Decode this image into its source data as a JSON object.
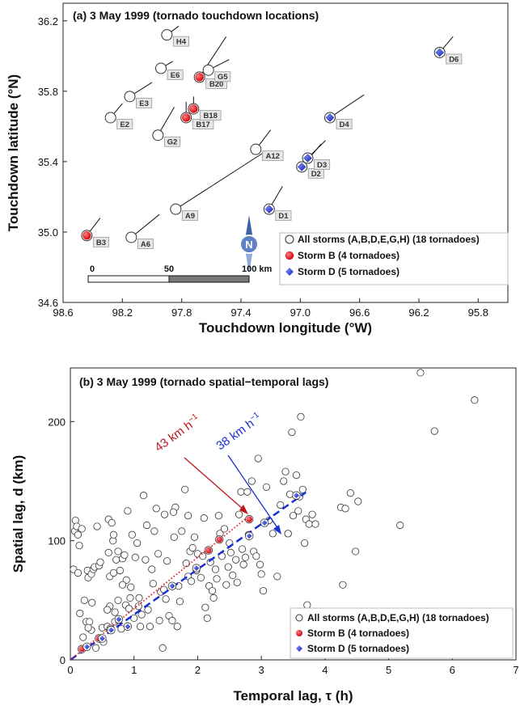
{
  "colors": {
    "storm_b": "#e8141c",
    "storm_d": "#1a2fd6",
    "all": "#ffffff",
    "speed_b": "#c0141c",
    "speed_d": "#1a2fd6",
    "compass": "#3d63a6"
  },
  "chart_data": [
    {
      "type": "scatter",
      "title": "(a) 3 May 1999 (tornado touchdown locations)",
      "xlabel": "Touchdown longitude (°W)",
      "ylabel": "Touchdown latitude (°N)",
      "xlim": [
        98.6,
        95.6
      ],
      "ylim": [
        34.6,
        36.3
      ],
      "x_reversed": true,
      "xticks": [
        98.6,
        98.2,
        97.8,
        97.4,
        97.0,
        96.6,
        96.2,
        95.8
      ],
      "xtick_labels": [
        "98.6",
        "98.2",
        "97.8",
        "97.4",
        "97.0",
        "96.6",
        "96.2",
        "95.8"
      ],
      "yticks": [
        34.6,
        35.0,
        35.4,
        35.8,
        36.2
      ],
      "ytick_labels": [
        "34.6",
        "35.0",
        "35.4",
        "35.8",
        "36.2"
      ],
      "grid": false,
      "legend_position": "bottom-right",
      "legend": [
        "All storms (A,B,D,E,G,H) (18 tornadoes)",
        "Storm B (4 tornadoes)",
        "Storm D (5 tornadoes)"
      ],
      "compass_label": "N",
      "scale_bar": {
        "labels": [
          "0",
          "50",
          "100 km"
        ]
      },
      "points": [
        {
          "label": "A6",
          "lon": 98.14,
          "lat": 34.97,
          "group": "all",
          "track_end": [
            97.95,
            35.1
          ]
        },
        {
          "label": "A9",
          "lon": 97.84,
          "lat": 35.13,
          "group": "all",
          "track_end": [
            97.25,
            35.45
          ]
        },
        {
          "label": "A12",
          "lon": 97.3,
          "lat": 35.47,
          "group": "all",
          "track_end": [
            97.2,
            35.58
          ]
        },
        {
          "label": "B3",
          "lon": 98.44,
          "lat": 34.98,
          "group": "B",
          "track_end": [
            98.35,
            35.08
          ]
        },
        {
          "label": "B17",
          "lon": 97.77,
          "lat": 35.65,
          "group": "B",
          "track_end": [
            97.77,
            35.74
          ]
        },
        {
          "label": "B18",
          "lon": 97.72,
          "lat": 35.7,
          "group": "B",
          "track_end": [
            97.72,
            35.77
          ]
        },
        {
          "label": "B20",
          "lon": 97.68,
          "lat": 35.88,
          "group": "B",
          "track_end": [
            97.5,
            36.11
          ]
        },
        {
          "label": "D1",
          "lon": 97.21,
          "lat": 35.13,
          "group": "D",
          "track_end": [
            97.12,
            35.26
          ]
        },
        {
          "label": "D2",
          "lon": 96.99,
          "lat": 35.37,
          "group": "D",
          "track_end": [
            96.86,
            35.5
          ]
        },
        {
          "label": "D3",
          "lon": 96.95,
          "lat": 35.42,
          "group": "D",
          "track_end": [
            96.83,
            35.52
          ]
        },
        {
          "label": "D4",
          "lon": 96.8,
          "lat": 35.65,
          "group": "D",
          "track_end": [
            96.57,
            35.78
          ]
        },
        {
          "label": "D6",
          "lon": 96.06,
          "lat": 36.02,
          "group": "D",
          "track_end": [
            95.97,
            36.11
          ]
        },
        {
          "label": "E2",
          "lon": 98.28,
          "lat": 35.65,
          "group": "all",
          "track_end": [
            98.2,
            35.73
          ]
        },
        {
          "label": "E3",
          "lon": 98.15,
          "lat": 35.77,
          "group": "all",
          "track_end": [
            98.0,
            35.85
          ]
        },
        {
          "label": "E6",
          "lon": 97.94,
          "lat": 35.93,
          "group": "all",
          "track_end": [
            97.86,
            35.97
          ]
        },
        {
          "label": "G2",
          "lon": 97.96,
          "lat": 35.55,
          "group": "all",
          "track_end": [
            97.85,
            35.71
          ]
        },
        {
          "label": "G5",
          "lon": 97.62,
          "lat": 35.92,
          "group": "all",
          "track_end": [
            97.48,
            35.98
          ]
        },
        {
          "label": "H4",
          "lon": 97.9,
          "lat": 36.12,
          "group": "all",
          "track_end": [
            97.82,
            36.17
          ]
        }
      ]
    },
    {
      "type": "scatter",
      "title": "(b) 3 May 1999 (tornado spatial−temporal lags)",
      "xlabel": "Temporal lag, τ (h)",
      "ylabel": "Spatial lag, d (km)",
      "xlim": [
        0,
        7
      ],
      "ylim": [
        0,
        245
      ],
      "xticks": [
        0,
        1,
        2,
        3,
        4,
        5,
        6,
        7
      ],
      "xtick_labels": [
        "0",
        "1",
        "2",
        "3",
        "4",
        "5",
        "6",
        "7"
      ],
      "yticks": [
        0,
        100,
        200
      ],
      "ytick_labels": [
        "0",
        "100",
        "200"
      ],
      "grid": false,
      "legend_position": "bottom-right",
      "legend": [
        "All storms (A,B,D,E,G,H) (18 tornadoes)",
        "Storm B (4 tornadoes)",
        "Storm D (5 tornadoes)"
      ],
      "fit_lines": [
        {
          "name": "Storm B",
          "slope": 43,
          "annotation": "43 km h",
          "exponent": "−1",
          "style": "dotted",
          "x_end": 2.8
        },
        {
          "name": "Storm D",
          "slope": 38,
          "annotation": "38 km h",
          "exponent": "−1",
          "style": "dashed",
          "x_end": 3.7
        }
      ],
      "series": [
        {
          "name": "Storm B",
          "points": [
            [
              0.18,
              9
            ],
            [
              0.45,
              18
            ],
            [
              0.63,
              26
            ],
            [
              2.17,
              92
            ],
            [
              2.34,
              101
            ],
            [
              2.81,
              118
            ]
          ]
        },
        {
          "name": "Storm D",
          "points": [
            [
              0.26,
              11
            ],
            [
              0.5,
              18
            ],
            [
              0.64,
              25
            ],
            [
              0.76,
              34
            ],
            [
              0.9,
              28
            ],
            [
              1.6,
              62
            ],
            [
              1.98,
              77
            ],
            [
              2.81,
              104
            ],
            [
              3.05,
              115
            ],
            [
              3.55,
              138
            ]
          ]
        },
        {
          "name": "All storms",
          "points": [
            [
              0.05,
              76
            ],
            [
              0.07,
              108
            ],
            [
              0.08,
              117
            ],
            [
              0.1,
              112
            ],
            [
              0.12,
              105
            ],
            [
              0.12,
              73
            ],
            [
              0.14,
              96
            ],
            [
              0.15,
              39
            ],
            [
              0.18,
              110
            ],
            [
              0.2,
              19
            ],
            [
              0.22,
              50
            ],
            [
              0.25,
              32
            ],
            [
              0.27,
              75
            ],
            [
              0.28,
              69
            ],
            [
              0.3,
              32
            ],
            [
              0.33,
              72
            ],
            [
              0.33,
              25
            ],
            [
              0.34,
              48
            ],
            [
              0.36,
              76
            ],
            [
              0.38,
              78
            ],
            [
              0.4,
              10
            ],
            [
              0.42,
              112
            ],
            [
              0.45,
              79
            ],
            [
              0.47,
              82
            ],
            [
              0.5,
              27
            ],
            [
              0.52,
              15
            ],
            [
              0.58,
              28
            ],
            [
              0.6,
              118
            ],
            [
              0.6,
              90
            ],
            [
              0.62,
              70
            ],
            [
              0.62,
              45
            ],
            [
              0.65,
              115
            ],
            [
              0.67,
              100
            ],
            [
              0.68,
              105
            ],
            [
              0.68,
              73
            ],
            [
              0.7,
              32
            ],
            [
              0.7,
              40
            ],
            [
              0.72,
              84
            ],
            [
              0.75,
              50
            ],
            [
              0.75,
              91
            ],
            [
              0.78,
              75
            ],
            [
              0.8,
              26
            ],
            [
              0.82,
              85
            ],
            [
              0.85,
              88
            ],
            [
              0.87,
              46
            ],
            [
              0.88,
              67
            ],
            [
              0.9,
              125
            ],
            [
              0.92,
              43
            ],
            [
              0.95,
              61
            ],
            [
              0.97,
              105
            ],
            [
              1.0,
              35
            ],
            [
              1.02,
              86
            ],
            [
              1.05,
              98
            ],
            [
              1.08,
              52
            ],
            [
              1.1,
              28
            ],
            [
              1.12,
              38
            ],
            [
              1.15,
              138
            ],
            [
              1.18,
              84
            ],
            [
              1.2,
              113
            ],
            [
              1.22,
              42
            ],
            [
              1.25,
              28
            ],
            [
              1.28,
              76
            ],
            [
              1.3,
              64
            ],
            [
              1.32,
              108
            ],
            [
              1.35,
              127
            ],
            [
              1.38,
              89
            ],
            [
              1.4,
              33
            ],
            [
              1.42,
              57
            ],
            [
              1.45,
              10
            ],
            [
              1.47,
              59
            ],
            [
              1.48,
              122
            ],
            [
              1.5,
              51
            ],
            [
              1.52,
              83
            ],
            [
              1.55,
              37
            ],
            [
              1.6,
              33
            ],
            [
              1.63,
              103
            ],
            [
              1.65,
              128
            ],
            [
              1.68,
              28
            ],
            [
              1.7,
              62
            ],
            [
              1.72,
              49
            ],
            [
              1.75,
              108
            ],
            [
              1.8,
              143
            ],
            [
              1.82,
              81
            ],
            [
              1.85,
              70
            ],
            [
              1.88,
              91
            ],
            [
              1.9,
              66
            ],
            [
              1.92,
              94
            ],
            [
              1.95,
              103
            ],
            [
              1.98,
              75
            ],
            [
              2.0,
              89
            ],
            [
              2.05,
              69
            ],
            [
              2.08,
              87
            ],
            [
              2.1,
              119
            ],
            [
              2.12,
              44
            ],
            [
              2.15,
              35
            ],
            [
              2.18,
              62
            ],
            [
              2.2,
              82
            ],
            [
              2.23,
              58
            ],
            [
              2.25,
              52
            ],
            [
              2.28,
              76
            ],
            [
              2.3,
              68
            ],
            [
              2.33,
              121
            ],
            [
              2.35,
              106
            ],
            [
              2.38,
              87
            ],
            [
              2.42,
              110
            ],
            [
              2.45,
              63
            ],
            [
              2.48,
              78
            ],
            [
              2.5,
              98
            ],
            [
              2.52,
              90
            ],
            [
              2.55,
              71
            ],
            [
              2.6,
              84
            ],
            [
              2.62,
              65
            ],
            [
              2.65,
              122
            ],
            [
              2.68,
              141
            ],
            [
              2.7,
              93
            ],
            [
              2.72,
              80
            ],
            [
              2.75,
              86
            ],
            [
              2.8,
              105
            ],
            [
              2.85,
              150
            ],
            [
              2.88,
              91
            ],
            [
              2.92,
              87
            ],
            [
              2.95,
              169
            ],
            [
              2.98,
              80
            ],
            [
              3.0,
              72
            ],
            [
              3.03,
              58
            ],
            [
              3.08,
              145
            ],
            [
              3.12,
              117
            ],
            [
              3.18,
              106
            ],
            [
              3.25,
              70
            ],
            [
              3.3,
              130
            ],
            [
              3.35,
              150
            ],
            [
              3.38,
              158
            ],
            [
              3.42,
              106
            ],
            [
              3.45,
              139
            ],
            [
              3.48,
              191
            ],
            [
              3.5,
              121
            ],
            [
              3.55,
              155
            ],
            [
              3.58,
              125
            ],
            [
              3.62,
              204
            ],
            [
              3.65,
              143
            ],
            [
              3.68,
              98
            ],
            [
              3.7,
              118
            ],
            [
              3.72,
              46
            ],
            [
              3.75,
              114
            ],
            [
              3.8,
              122
            ],
            [
              3.85,
              114
            ],
            [
              4.25,
              128
            ],
            [
              4.28,
              63
            ],
            [
              4.32,
              127
            ],
            [
              4.4,
              140
            ],
            [
              4.48,
              91
            ],
            [
              4.52,
              133
            ],
            [
              5.5,
              241
            ],
            [
              5.72,
              192
            ],
            [
              6.35,
              218
            ],
            [
              5.18,
              113
            ],
            [
              3.6,
              137
            ],
            [
              3.42,
              106
            ],
            [
              2.78,
              141
            ],
            [
              1.62,
              124
            ],
            [
              1.85,
              121
            ],
            [
              0.82,
              63
            ],
            [
              0.94,
              52
            ],
            [
              1.07,
              45
            ],
            [
              0.58,
              42
            ],
            [
              0.28,
              27
            ]
          ]
        }
      ]
    }
  ]
}
